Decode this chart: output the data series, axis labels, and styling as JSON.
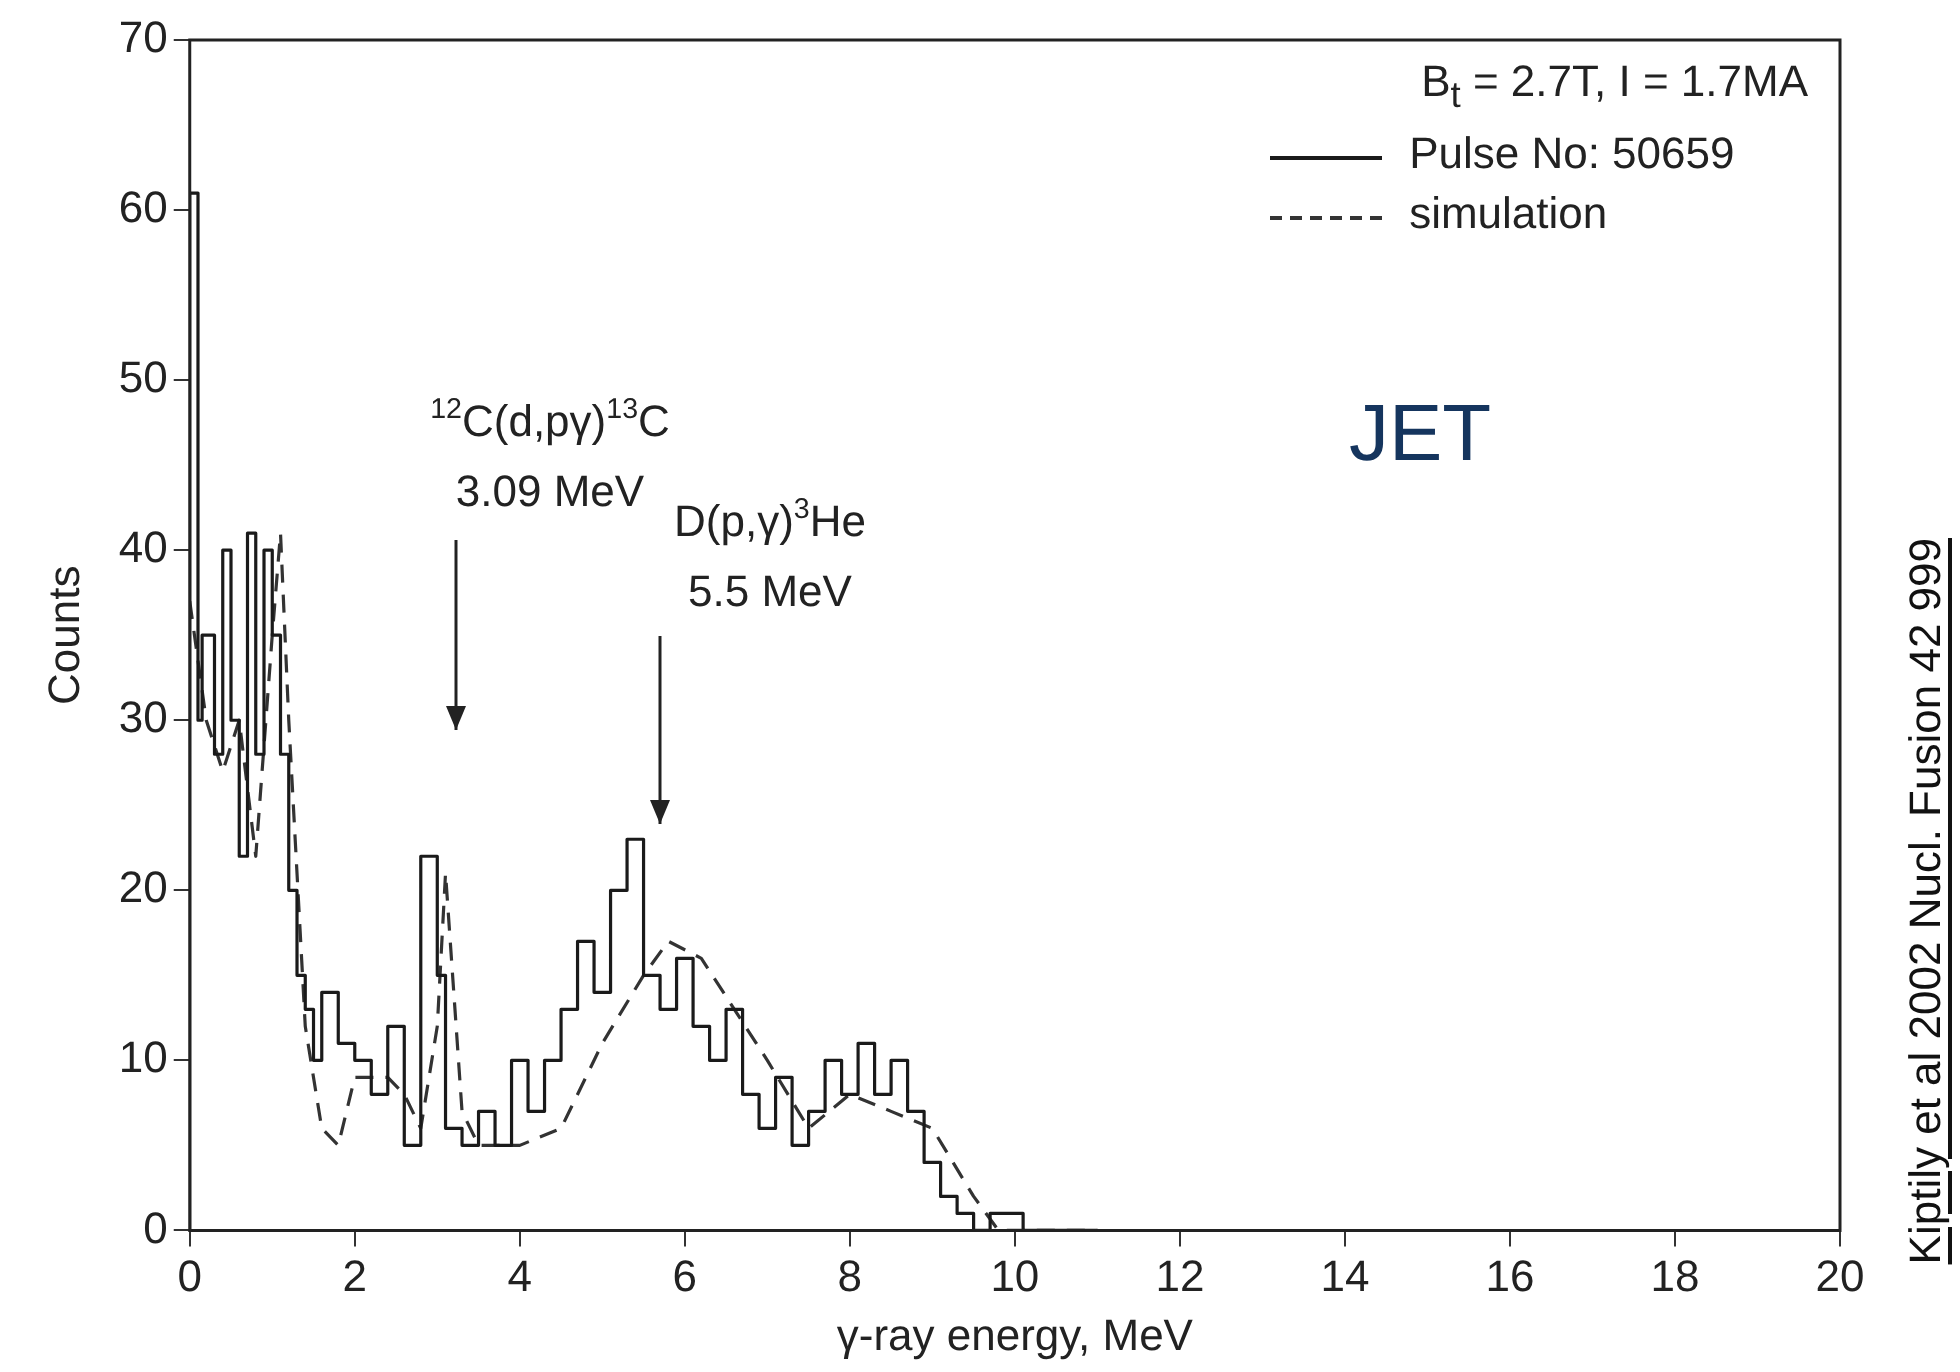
{
  "chart_data": {
    "type": "step",
    "xlabel": "γ-ray energy, MeV",
    "ylabel": "Counts",
    "legend_title": "B$_{t}$ = 2.7T, I = 1.7MA",
    "legend": "top right",
    "xlim": [
      0,
      20
    ],
    "xticks": [
      0,
      2,
      4,
      6,
      8,
      10,
      12,
      14,
      16,
      18,
      20
    ],
    "ylim": [
      0,
      70
    ],
    "yticks": [
      0,
      10,
      20,
      30,
      40,
      50,
      60,
      70
    ],
    "series": [
      {
        "name": "Pulse No: 50659",
        "color": "#1a1a1a",
        "line_style": "solid",
        "x": [
          0,
          0.1,
          0.15,
          0.3,
          0.4,
          0.5,
          0.6,
          0.7,
          0.8,
          0.9,
          1.0,
          1.1,
          1.2,
          1.3,
          1.4,
          1.5,
          1.6,
          1.8,
          2.0,
          2.2,
          2.4,
          2.6,
          2.8,
          3.0,
          3.1,
          3.3,
          3.5,
          3.7,
          3.9,
          4.1,
          4.3,
          4.5,
          4.7,
          4.9,
          5.1,
          5.3,
          5.5,
          5.7,
          5.9,
          6.1,
          6.3,
          6.5,
          6.7,
          6.9,
          7.1,
          7.3,
          7.5,
          7.7,
          7.9,
          8.1,
          8.3,
          8.5,
          8.7,
          8.9,
          9.1,
          9.3,
          9.5,
          9.7,
          10.1,
          10.2,
          11
        ],
        "values": [
          0,
          61,
          30,
          35,
          28,
          40,
          30,
          22,
          41,
          28,
          40,
          35,
          28,
          20,
          15,
          13,
          10,
          14,
          11,
          10,
          8,
          12,
          5,
          22,
          15,
          6,
          5,
          7,
          5,
          10,
          7,
          10,
          13,
          17,
          14,
          20,
          23,
          15,
          13,
          16,
          12,
          10,
          13,
          8,
          6,
          9,
          5,
          7,
          10,
          8,
          11,
          8,
          10,
          7,
          4,
          2,
          1,
          0,
          1,
          0,
          0
        ]
      },
      {
        "name": "simulation",
        "type": "line",
        "color": "#333333",
        "line_style": "dashed",
        "x": [
          0,
          0.2,
          0.4,
          0.6,
          0.8,
          1.0,
          1.1,
          1.2,
          1.4,
          1.6,
          1.8,
          2.0,
          2.4,
          2.6,
          2.8,
          3.0,
          3.1,
          3.3,
          3.5,
          4.0,
          4.5,
          5.0,
          5.5,
          5.8,
          6.2,
          6.6,
          7.0,
          7.5,
          8.0,
          8.5,
          9.0,
          9.5,
          9.8,
          11.0
        ],
        "values": [
          37,
          30,
          27,
          30,
          22,
          35,
          41,
          30,
          12,
          6,
          5,
          9,
          9,
          8,
          6,
          12,
          21,
          7,
          5,
          5,
          6,
          11,
          15,
          17,
          16,
          13,
          10,
          6,
          8,
          7,
          6,
          2,
          0,
          0
        ]
      }
    ],
    "annotations": [
      "JET",
      "Kiptily et al 2002 Nucl. Fusion 42 999",
      "$^{12}$C(d,pγ)$^{13}$C\n3.09 MeV",
      "D(p,γ)$^{3}$He\n5.5 MeV"
    ]
  }
}
